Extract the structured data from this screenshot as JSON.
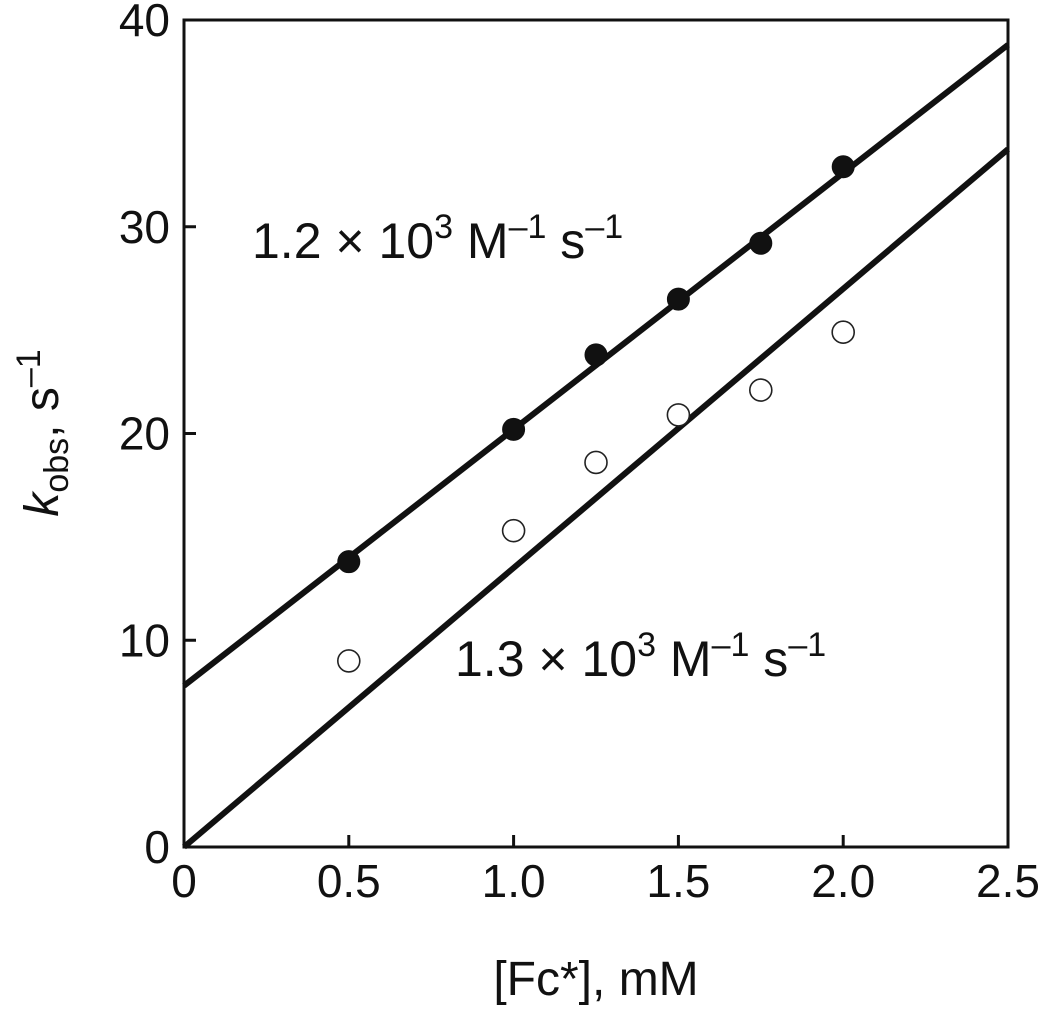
{
  "chart_data": {
    "type": "scatter",
    "xlabel": "[Fc*], mM",
    "ylabel_main": "k",
    "ylabel_sub": "obs",
    "ylabel_unit": ", s",
    "ylabel_sup": "–1",
    "xlim": [
      0,
      2.5
    ],
    "ylim": [
      0,
      40
    ],
    "x_ticks": [
      0,
      0.5,
      1.0,
      1.5,
      2.0,
      2.5
    ],
    "x_tick_labels": [
      "0",
      "0.5",
      "1.0",
      "1.5",
      "2.0",
      "2.5"
    ],
    "y_ticks": [
      0,
      10,
      20,
      30,
      40
    ],
    "y_tick_labels": [
      "0",
      "10",
      "20",
      "30",
      "40"
    ],
    "grid": false,
    "series": [
      {
        "marker": "filled-circle",
        "x": [
          0.5,
          1.0,
          1.25,
          1.5,
          1.75,
          2.0
        ],
        "y": [
          13.8,
          20.2,
          23.8,
          26.5,
          29.2,
          32.9
        ],
        "fit": {
          "intercept": 7.8,
          "slope": 12.4
        }
      },
      {
        "marker": "open-circle",
        "x": [
          0.5,
          1.0,
          1.25,
          1.5,
          1.75,
          2.0
        ],
        "y": [
          9.0,
          15.3,
          18.6,
          20.9,
          22.1,
          24.9
        ],
        "fit": {
          "intercept": 0,
          "slope": 13.5
        }
      }
    ],
    "annotations": [
      {
        "base": "1.2 × 10",
        "exp": "3",
        "rest1": " M",
        "rest1_sup": "–1",
        "rest2": " s",
        "rest2_sup": "–1"
      },
      {
        "base": "1.3 × 10",
        "exp": "3",
        "rest1": " M",
        "rest1_sup": "–1",
        "rest2": " s",
        "rest2_sup": "–1"
      }
    ]
  }
}
